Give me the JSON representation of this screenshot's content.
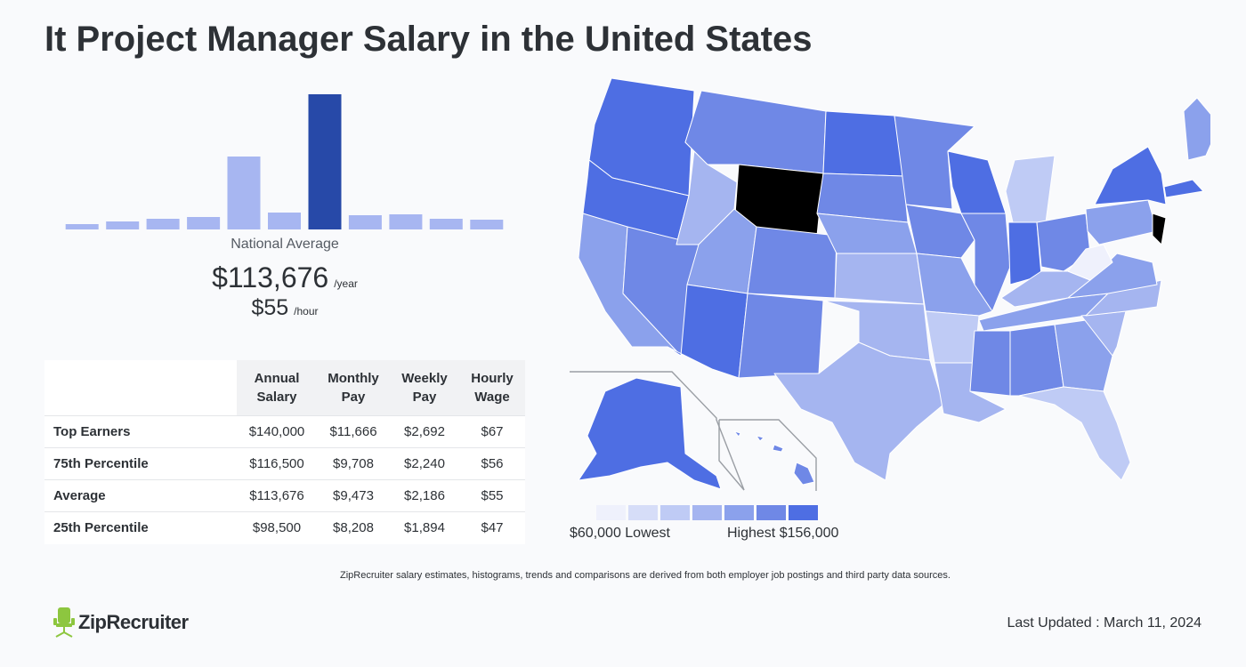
{
  "title": "It Project Manager Salary in the United States",
  "chart_data": [
    {
      "type": "bar",
      "title": "",
      "values": [
        6,
        9,
        12,
        14,
        82,
        19,
        152,
        16,
        17,
        12,
        11
      ],
      "highlight_index": 6,
      "colors": {
        "bar": "#a7b6f1",
        "highlight": "#2749a8"
      },
      "caption": "National Average",
      "annual": "$113,676",
      "annual_unit": "/year",
      "hourly": "$55",
      "hourly_unit": "/hour"
    },
    {
      "type": "table",
      "columns": [
        "",
        "Annual Salary",
        "Monthly Pay",
        "Weekly Pay",
        "Hourly Wage"
      ],
      "rows": [
        {
          "label": "Top Earners",
          "values": [
            "$140,000",
            "$11,666",
            "$2,692",
            "$67"
          ]
        },
        {
          "label": "75th Percentile",
          "values": [
            "$116,500",
            "$9,708",
            "$2,240",
            "$56"
          ]
        },
        {
          "label": "Average",
          "values": [
            "$113,676",
            "$9,473",
            "$2,186",
            "$55"
          ]
        },
        {
          "label": "25th Percentile",
          "values": [
            "$98,500",
            "$8,208",
            "$1,894",
            "$47"
          ]
        }
      ]
    }
  ],
  "map": {
    "state_levels": {
      "WA": 6,
      "OR": 6,
      "CA": 4,
      "NV": 5,
      "ID": 3,
      "MT": 5,
      "WY": 7,
      "UT": 4,
      "AZ": 6,
      "CO": 5,
      "NM": 5,
      "ND": 6,
      "SD": 5,
      "NE": 4,
      "KS": 3,
      "OK": 3,
      "TX": 3,
      "MN": 5,
      "IA": 5,
      "MO": 4,
      "AR": 2,
      "LA": 3,
      "WI": 6,
      "IL": 5,
      "MI": 2,
      "IN": 6,
      "OH": 5,
      "KY": 3,
      "TN": 4,
      "MS": 5,
      "AL": 5,
      "GA": 4,
      "FL": 2,
      "SC": 3,
      "NC": 3,
      "VA": 4,
      "WV": 0,
      "PA": 4,
      "NY": 6,
      "ME": 4,
      "NJ": 7,
      "MA": 6,
      "AK": 6,
      "HI": 5
    },
    "legend_colors": [
      "#eff1fc",
      "#d6ddf8",
      "#bfcbf5",
      "#a5b5f0",
      "#8ba1ec",
      "#6f88e6",
      "#4e6ee3"
    ],
    "legend_low": "$60,000 Lowest",
    "legend_high": "Highest $156,000"
  },
  "footnote": "ZipRecruiter salary estimates, histograms, trends and comparisons are derived from both employer job postings and third party data sources.",
  "brand": "ZipRecruiter",
  "last_updated": "Last Updated : March 11, 2024"
}
